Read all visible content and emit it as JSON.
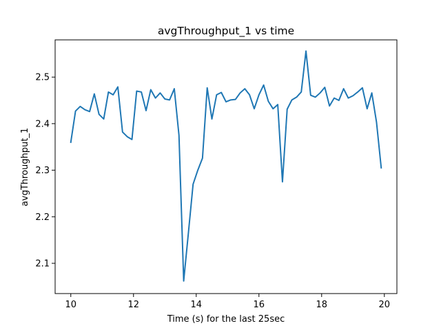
{
  "chart_data": {
    "type": "line",
    "title": "avgThroughput_1 vs time",
    "xlabel": "Time (s) for the last 25sec",
    "ylabel": "avgThroughput_1",
    "xlim": [
      9.5,
      20.4
    ],
    "ylim": [
      2.035,
      2.58
    ],
    "xticks": [
      10,
      12,
      14,
      16,
      18,
      20
    ],
    "yticks": [
      2.1,
      2.2,
      2.3,
      2.4,
      2.5
    ],
    "xtick_labels": [
      "10",
      "12",
      "14",
      "16",
      "18",
      "20"
    ],
    "ytick_labels": [
      "2.1",
      "2.2",
      "2.3",
      "2.4",
      "2.5"
    ],
    "grid": false,
    "line_color": "#1f77b4",
    "series": [
      {
        "x": [
          10.0,
          10.15,
          10.3,
          10.45,
          10.6,
          10.75,
          10.9,
          11.05,
          11.2,
          11.35,
          11.5,
          11.65,
          11.8,
          11.95,
          12.1,
          12.25,
          12.4,
          12.55,
          12.7,
          12.85,
          13.0,
          13.15,
          13.3,
          13.45,
          13.6,
          13.75,
          13.9,
          14.05,
          14.2,
          14.35,
          14.5,
          14.65,
          14.8,
          14.95,
          15.1,
          15.25,
          15.4,
          15.55,
          15.7,
          15.85,
          16.0,
          16.15,
          16.3,
          16.45,
          16.6,
          16.75,
          16.9,
          17.05,
          17.2,
          17.35,
          17.5,
          17.65,
          17.8,
          17.95,
          18.1,
          18.25,
          18.4,
          18.55,
          18.7,
          18.85,
          19.0,
          19.15,
          19.3,
          19.45,
          19.6,
          19.75,
          19.9
        ],
        "y": [
          2.36,
          2.427,
          2.437,
          2.43,
          2.426,
          2.464,
          2.42,
          2.41,
          2.468,
          2.462,
          2.479,
          2.382,
          2.372,
          2.366,
          2.47,
          2.468,
          2.428,
          2.473,
          2.455,
          2.466,
          2.453,
          2.451,
          2.475,
          2.375,
          2.062,
          2.165,
          2.27,
          2.3,
          2.326,
          2.477,
          2.41,
          2.462,
          2.467,
          2.447,
          2.451,
          2.452,
          2.466,
          2.475,
          2.462,
          2.432,
          2.462,
          2.483,
          2.448,
          2.432,
          2.441,
          2.275,
          2.431,
          2.451,
          2.457,
          2.468,
          2.556,
          2.461,
          2.457,
          2.466,
          2.478,
          2.438,
          2.455,
          2.45,
          2.475,
          2.455,
          2.46,
          2.468,
          2.477,
          2.432,
          2.466,
          2.403,
          2.305
        ]
      }
    ]
  }
}
